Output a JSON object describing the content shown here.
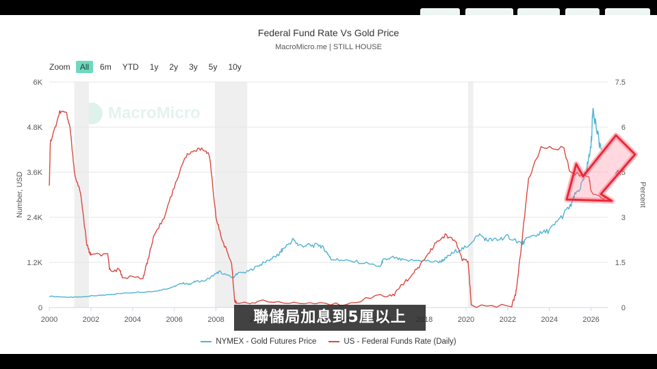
{
  "chart_data": {
    "type": "line",
    "title": "Federal Fund Rate Vs Gold Price",
    "subtitle": "MacroMicro.me | STILL HOUSE",
    "xlabel": "",
    "xlim": [
      2000,
      2026.8
    ],
    "x_ticks": [
      "2000",
      "2002",
      "2004",
      "2006",
      "2008",
      "2010",
      "2012",
      "2014",
      "2016",
      "2018",
      "2020",
      "2022",
      "2024",
      "2026"
    ],
    "y_left": {
      "label": "Number, USD",
      "ticks": [
        "0",
        "1.2K",
        "2.4K",
        "3.6K",
        "4.8K",
        "6K"
      ],
      "ylim": [
        0,
        6000
      ]
    },
    "y_right": {
      "label": "Percent",
      "ticks": [
        "0",
        "1.5",
        "3",
        "4.5",
        "6",
        "7.5"
      ],
      "ylim": [
        0,
        7.5
      ]
    },
    "recessions": [
      [
        2001.2,
        2001.9
      ],
      [
        2007.95,
        2009.5
      ],
      [
        2020.1,
        2020.35
      ]
    ],
    "series": [
      {
        "name": "NYMEX - Gold Futures Price",
        "axis": "left",
        "color": "#4fb3d1",
        "x": [
          2000,
          2001,
          2001.6,
          2002,
          2002.5,
          2003,
          2004,
          2005,
          2005.5,
          2006,
          2006.4,
          2006.7,
          2007,
          2007.5,
          2008,
          2008.2,
          2008.8,
          2009,
          2009.5,
          2010,
          2010.5,
          2011,
          2011.2,
          2011.7,
          2012,
          2012.5,
          2013,
          2013.3,
          2013.5,
          2014,
          2015,
          2015.9,
          2016,
          2016.5,
          2017,
          2018,
          2018.7,
          2019,
          2019.5,
          2020,
          2020.6,
          2021,
          2021.5,
          2022,
          2022.7,
          2023,
          2023.5,
          2024,
          2024.5,
          2025,
          2025.3,
          2025.6,
          2025.8,
          2026,
          2026.1,
          2026.3,
          2026.5
        ],
        "y": [
          300,
          270,
          280,
          310,
          320,
          350,
          400,
          430,
          480,
          560,
          650,
          620,
          690,
          720,
          900,
          950,
          780,
          900,
          950,
          1100,
          1250,
          1400,
          1550,
          1800,
          1650,
          1650,
          1650,
          1500,
          1300,
          1250,
          1200,
          1100,
          1250,
          1330,
          1250,
          1250,
          1200,
          1300,
          1500,
          1600,
          1950,
          1800,
          1800,
          1900,
          1700,
          1850,
          1950,
          2050,
          2350,
          2700,
          3050,
          3300,
          3700,
          4300,
          5350,
          4600,
          4200
        ]
      },
      {
        "name": "US - Federal Funds Rate (Daily)",
        "axis": "right",
        "color": "#d9473f",
        "x": [
          2000,
          2000.05,
          2000.2,
          2000.5,
          2000.8,
          2001,
          2001.2,
          2001.5,
          2001.8,
          2001.95,
          2002,
          2002.8,
          2002.9,
          2003.4,
          2003.5,
          2004.5,
          2004.7,
          2005,
          2005.5,
          2006,
          2006.5,
          2007,
          2007.5,
          2007.7,
          2008,
          2008.3,
          2008.75,
          2008.9,
          2009,
          2010,
          2012,
          2014,
          2015.9,
          2016.5,
          2017,
          2017.5,
          2018,
          2018.5,
          2019,
          2019.5,
          2019.8,
          2020.1,
          2020.25,
          2022.2,
          2022.4,
          2022.7,
          2023,
          2023.6,
          2024.7,
          2025,
          2025.9,
          2026,
          2026.8
        ],
        "y": [
          4.0,
          5.5,
          5.8,
          6.5,
          6.5,
          6.0,
          4.5,
          3.8,
          2.1,
          1.8,
          1.75,
          1.75,
          1.25,
          1.25,
          1.0,
          1.0,
          1.5,
          2.3,
          3.0,
          4.0,
          5.0,
          5.25,
          5.25,
          5.0,
          3.0,
          2.25,
          1.5,
          0.2,
          0.15,
          0.2,
          0.15,
          0.1,
          0.4,
          0.4,
          0.8,
          1.15,
          1.6,
          2.1,
          2.4,
          2.2,
          1.6,
          1.55,
          0.05,
          0.08,
          0.5,
          2.3,
          4.3,
          5.3,
          5.3,
          4.5,
          4.35,
          3.85,
          3.6
        ]
      }
    ],
    "legend_position": "bottom",
    "grid": true
  },
  "zoom": {
    "label": "Zoom",
    "options": [
      "All",
      "6m",
      "YTD",
      "1y",
      "2y",
      "3y",
      "5y",
      "10y"
    ],
    "selected": "All"
  },
  "caption": "聯儲局加息到5厘以上",
  "watermark": "MacroMicro",
  "arrow_color": "#e8283a"
}
